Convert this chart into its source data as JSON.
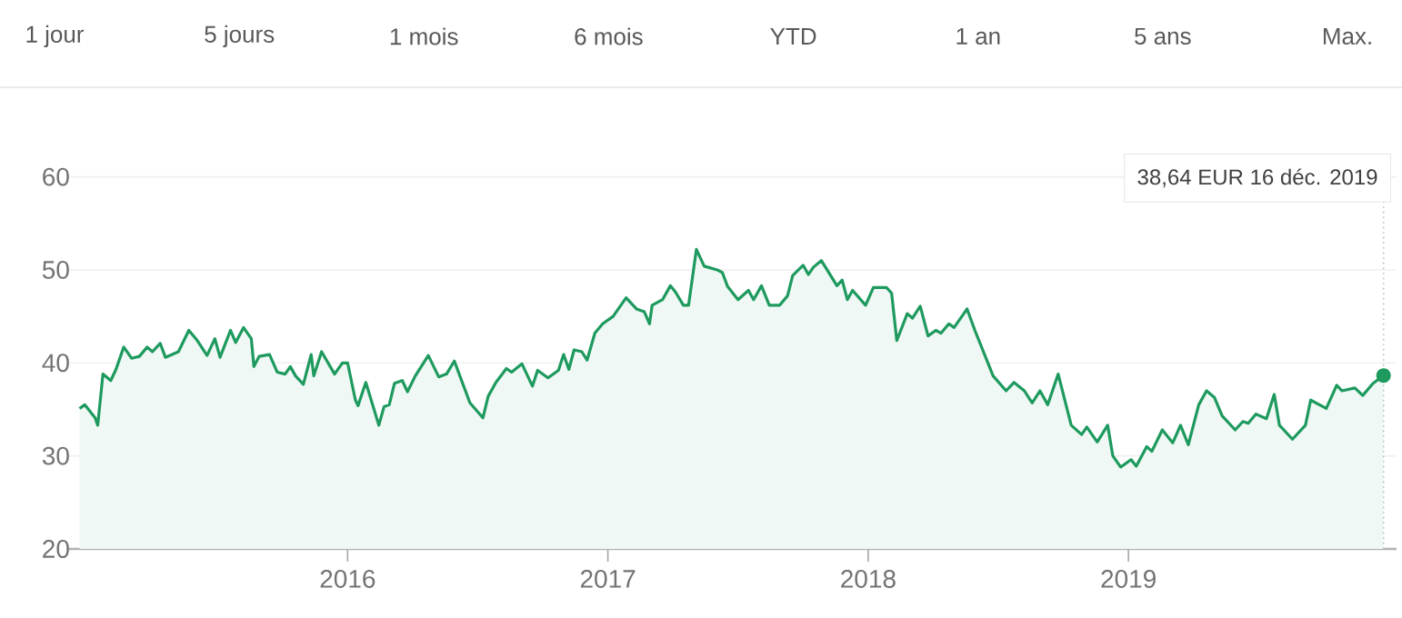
{
  "chart_data": {
    "type": "area",
    "annotations": [
      "1 jour",
      "5 jours",
      "1 mois",
      "6 mois",
      "YTD",
      "1 an",
      "5 ans",
      "Max.",
      "38,64 EUR  16 déc. 2019"
    ],
    "series": [
      {
        "color": "#1e9a5f",
        "x": [
          2014.97,
          2014.99,
          2015.03,
          2015.04,
          2015.06,
          2015.09,
          2015.11,
          2015.14,
          2015.17,
          2015.2,
          2015.23,
          2015.25,
          2015.28,
          2015.3,
          2015.35,
          2015.39,
          2015.42,
          2015.46,
          2015.49,
          2015.51,
          2015.55,
          2015.57,
          2015.6,
          2015.63,
          2015.64,
          2015.66,
          2015.7,
          2015.73,
          2015.76,
          2015.78,
          2015.8,
          2015.83,
          2015.86,
          2015.87,
          2015.9,
          2015.95,
          2015.98,
          2016.0,
          2016.03,
          2016.04,
          2016.07,
          2016.12,
          2016.14,
          2016.16,
          2016.18,
          2016.21,
          2016.23,
          2016.26,
          2016.31,
          2016.35,
          2016.38,
          2016.41,
          2016.47,
          2016.52,
          2016.54,
          2016.57,
          2016.61,
          2016.63,
          2016.67,
          2016.71,
          2016.73,
          2016.77,
          2016.81,
          2016.83,
          2016.85,
          2016.87,
          2016.9,
          2016.92,
          2016.95,
          2016.98,
          2017.02,
          2017.07,
          2017.11,
          2017.14,
          2017.16,
          2017.17,
          2017.21,
          2017.24,
          2017.26,
          2017.29,
          2017.31,
          2017.34,
          2017.37,
          2017.42,
          2017.44,
          2017.46,
          2017.5,
          2017.54,
          2017.56,
          2017.59,
          2017.62,
          2017.66,
          2017.69,
          2017.71,
          2017.75,
          2017.77,
          2017.79,
          2017.82,
          2017.88,
          2017.9,
          2017.92,
          2017.94,
          2017.99,
          2018.02,
          2018.07,
          2018.09,
          2018.11,
          2018.15,
          2018.17,
          2018.2,
          2018.23,
          2018.26,
          2018.28,
          2018.31,
          2018.33,
          2018.38,
          2018.41,
          2018.48,
          2018.53,
          2018.56,
          2018.6,
          2018.63,
          2018.66,
          2018.69,
          2018.73,
          2018.78,
          2018.82,
          2018.84,
          2018.88,
          2018.92,
          2018.94,
          2018.97,
          2019.01,
          2019.03,
          2019.07,
          2019.09,
          2019.13,
          2019.17,
          2019.2,
          2019.23,
          2019.27,
          2019.3,
          2019.33,
          2019.36,
          2019.41,
          2019.44,
          2019.46,
          2019.49,
          2019.53,
          2019.56,
          2019.58,
          2019.63,
          2019.68,
          2019.7,
          2019.76,
          2019.8,
          2019.82,
          2019.87,
          2019.9,
          2019.94,
          2019.98
        ],
        "values": [
          35.1,
          35.5,
          34.1,
          33.3,
          38.8,
          38.1,
          39.3,
          41.7,
          40.5,
          40.7,
          41.7,
          41.2,
          42.1,
          40.6,
          41.2,
          43.5,
          42.5,
          40.8,
          42.6,
          40.6,
          43.5,
          42.2,
          43.8,
          42.6,
          39.6,
          40.7,
          40.9,
          39.0,
          38.8,
          39.6,
          38.6,
          37.7,
          40.9,
          38.6,
          41.2,
          38.8,
          40.0,
          40.0,
          36.0,
          35.4,
          37.9,
          33.3,
          35.3,
          35.5,
          37.8,
          38.1,
          36.9,
          38.6,
          40.8,
          38.5,
          38.8,
          40.2,
          35.7,
          34.1,
          36.4,
          37.9,
          39.4,
          39.0,
          39.9,
          37.5,
          39.2,
          38.4,
          39.2,
          40.9,
          39.3,
          41.4,
          41.2,
          40.3,
          43.2,
          44.2,
          45.0,
          47.0,
          45.8,
          45.5,
          44.2,
          46.2,
          46.8,
          48.3,
          47.6,
          46.2,
          46.2,
          52.2,
          50.4,
          50.0,
          49.7,
          48.2,
          46.8,
          47.8,
          46.8,
          48.3,
          46.2,
          46.2,
          47.2,
          49.4,
          50.5,
          49.5,
          50.3,
          51.0,
          48.3,
          48.9,
          46.8,
          47.8,
          46.2,
          48.1,
          48.1,
          47.5,
          42.4,
          45.3,
          44.8,
          46.1,
          42.9,
          43.5,
          43.2,
          44.2,
          43.8,
          45.8,
          43.5,
          38.6,
          37.0,
          37.9,
          37.0,
          35.7,
          37.0,
          35.5,
          38.8,
          33.3,
          32.3,
          33.1,
          31.5,
          33.3,
          30.0,
          28.8,
          29.6,
          28.9,
          31.0,
          30.5,
          32.8,
          31.4,
          33.3,
          31.2,
          35.5,
          37.0,
          36.3,
          34.3,
          32.8,
          33.7,
          33.5,
          34.5,
          34.0,
          36.6,
          33.3,
          31.8,
          33.3,
          36.0,
          35.1,
          37.6,
          37.0,
          37.3,
          36.5,
          37.8,
          38.64
        ]
      }
    ],
    "xlim": [
      2014.93,
      2020.03
    ],
    "ylim": [
      20,
      60
    ],
    "xticks": [
      2016,
      2017,
      2018,
      2019
    ],
    "yticks": [
      20,
      30,
      40,
      50,
      60
    ],
    "grid": "y",
    "ref_lines": [
      {
        "axis": "x",
        "value": 2019.98,
        "line_style": "dotted",
        "color": "#bdbdbd"
      }
    ]
  }
}
